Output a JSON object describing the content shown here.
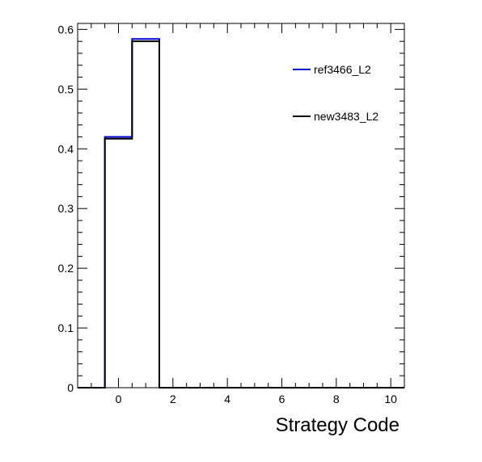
{
  "chart_data": {
    "type": "histogram",
    "title": "",
    "xlabel": "Strategy Code",
    "ylabel": "",
    "xlim": [
      -1.5,
      10.5
    ],
    "ylim": [
      0,
      0.61
    ],
    "x_ticks": [
      0,
      2,
      4,
      6,
      8,
      10
    ],
    "y_ticks": [
      0,
      0.1,
      0.2,
      0.3,
      0.4,
      0.5,
      0.6
    ],
    "x_tick_labels": [
      "0",
      "2",
      "4",
      "6",
      "8",
      "10"
    ],
    "y_tick_labels": [
      "0",
      "0.1",
      "0.2",
      "0.3",
      "0.4",
      "0.5",
      "0.6"
    ],
    "bin_edges": [
      -1.5,
      -0.5,
      0.5,
      1.5,
      2.5,
      3.5,
      4.5,
      5.5,
      6.5,
      7.5,
      8.5,
      9.5,
      10.5
    ],
    "grid": false,
    "legend_position": "top-right",
    "series": [
      {
        "name": "ref3466_L2",
        "color": "#0000cc",
        "values": [
          0,
          0.42,
          0.584,
          0,
          0,
          0,
          0,
          0,
          0,
          0,
          0,
          0
        ]
      },
      {
        "name": "new3483_L2",
        "color": "#000000",
        "values": [
          0,
          0.417,
          0.58,
          0,
          0,
          0,
          0,
          0,
          0,
          0,
          0,
          0
        ]
      }
    ]
  }
}
